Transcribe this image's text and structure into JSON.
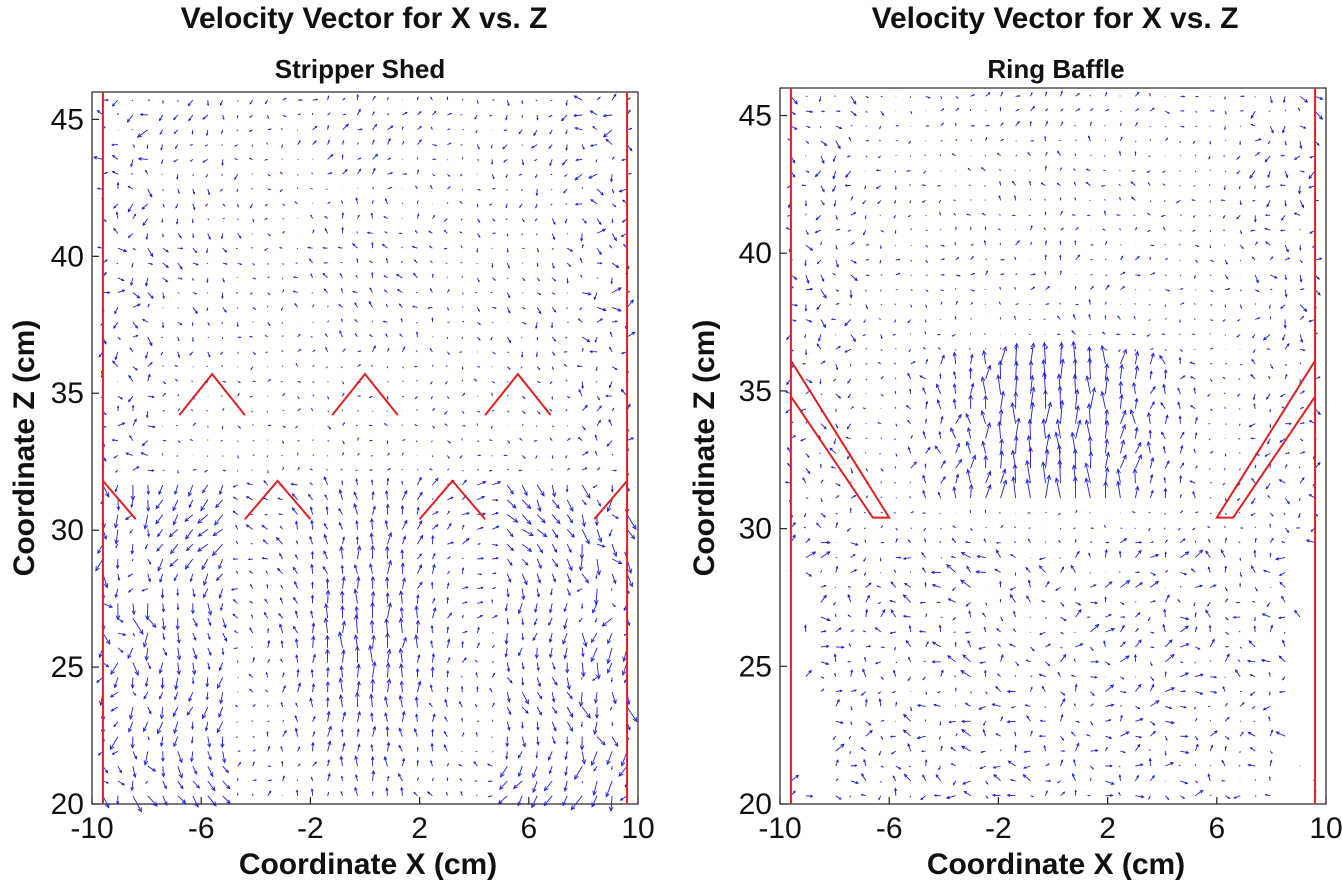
{
  "chart_data": [
    {
      "type": "quiver",
      "title": "Velocity Vector for X vs. Z",
      "subtitle": "Stripper Shed",
      "xlabel": "Coordinate X (cm)",
      "ylabel": "Coordinate Z (cm)",
      "xlim": [
        -10,
        10
      ],
      "ylim": [
        20,
        46
      ],
      "xticks": [
        -10,
        -6,
        -2,
        2,
        6,
        10
      ],
      "yticks": [
        20,
        25,
        30,
        35,
        40,
        45
      ],
      "grid": false,
      "vector_color": "#1f1fd6",
      "geometry_color": "#e02020",
      "field": "shed",
      "walls": [
        [
          [
            -9.6,
            20
          ],
          [
            -9.6,
            46
          ]
        ],
        [
          [
            9.6,
            20
          ],
          [
            9.6,
            46
          ]
        ]
      ],
      "geometry": [
        [
          [
            -6.8,
            34.2
          ],
          [
            -5.6,
            35.7
          ],
          [
            -4.4,
            34.2
          ]
        ],
        [
          [
            -1.2,
            34.2
          ],
          [
            0,
            35.7
          ],
          [
            1.2,
            34.2
          ]
        ],
        [
          [
            4.4,
            34.2
          ],
          [
            5.6,
            35.7
          ],
          [
            6.8,
            34.2
          ]
        ],
        [
          [
            -9.6,
            31.8
          ],
          [
            -8.4,
            30.4
          ]
        ],
        [
          [
            -4.4,
            30.4
          ],
          [
            -3.2,
            31.8
          ],
          [
            -2.0,
            30.4
          ]
        ],
        [
          [
            2.0,
            30.4
          ],
          [
            3.2,
            31.8
          ],
          [
            4.4,
            30.4
          ]
        ],
        [
          [
            8.4,
            30.4
          ],
          [
            9.6,
            31.8
          ]
        ]
      ]
    },
    {
      "type": "quiver",
      "title": "Velocity Vector for X vs. Z",
      "subtitle": "Ring Baffle",
      "xlabel": "Coordinate X (cm)",
      "ylabel": "Coordinate Z (cm)",
      "xlim": [
        -10,
        10
      ],
      "ylim": [
        20,
        46
      ],
      "xticks": [
        -10,
        -6,
        2,
        6,
        10
      ],
      "xtick_labels_extra": [
        -2
      ],
      "yticks": [
        20,
        25,
        30,
        35,
        40,
        45
      ],
      "grid": false,
      "vector_color": "#1f1fd6",
      "geometry_color": "#e02020",
      "field": "baffle",
      "walls": [
        [
          [
            -9.6,
            20
          ],
          [
            -9.6,
            46
          ]
        ],
        [
          [
            9.6,
            20
          ],
          [
            9.6,
            46
          ]
        ]
      ],
      "geometry": [
        [
          [
            -9.6,
            36.1
          ],
          [
            -6.0,
            30.4
          ],
          [
            -6.6,
            30.4
          ],
          [
            -9.6,
            34.8
          ]
        ],
        [
          [
            9.6,
            36.1
          ],
          [
            6.0,
            30.4
          ],
          [
            6.6,
            30.4
          ],
          [
            9.6,
            34.8
          ]
        ]
      ]
    }
  ]
}
